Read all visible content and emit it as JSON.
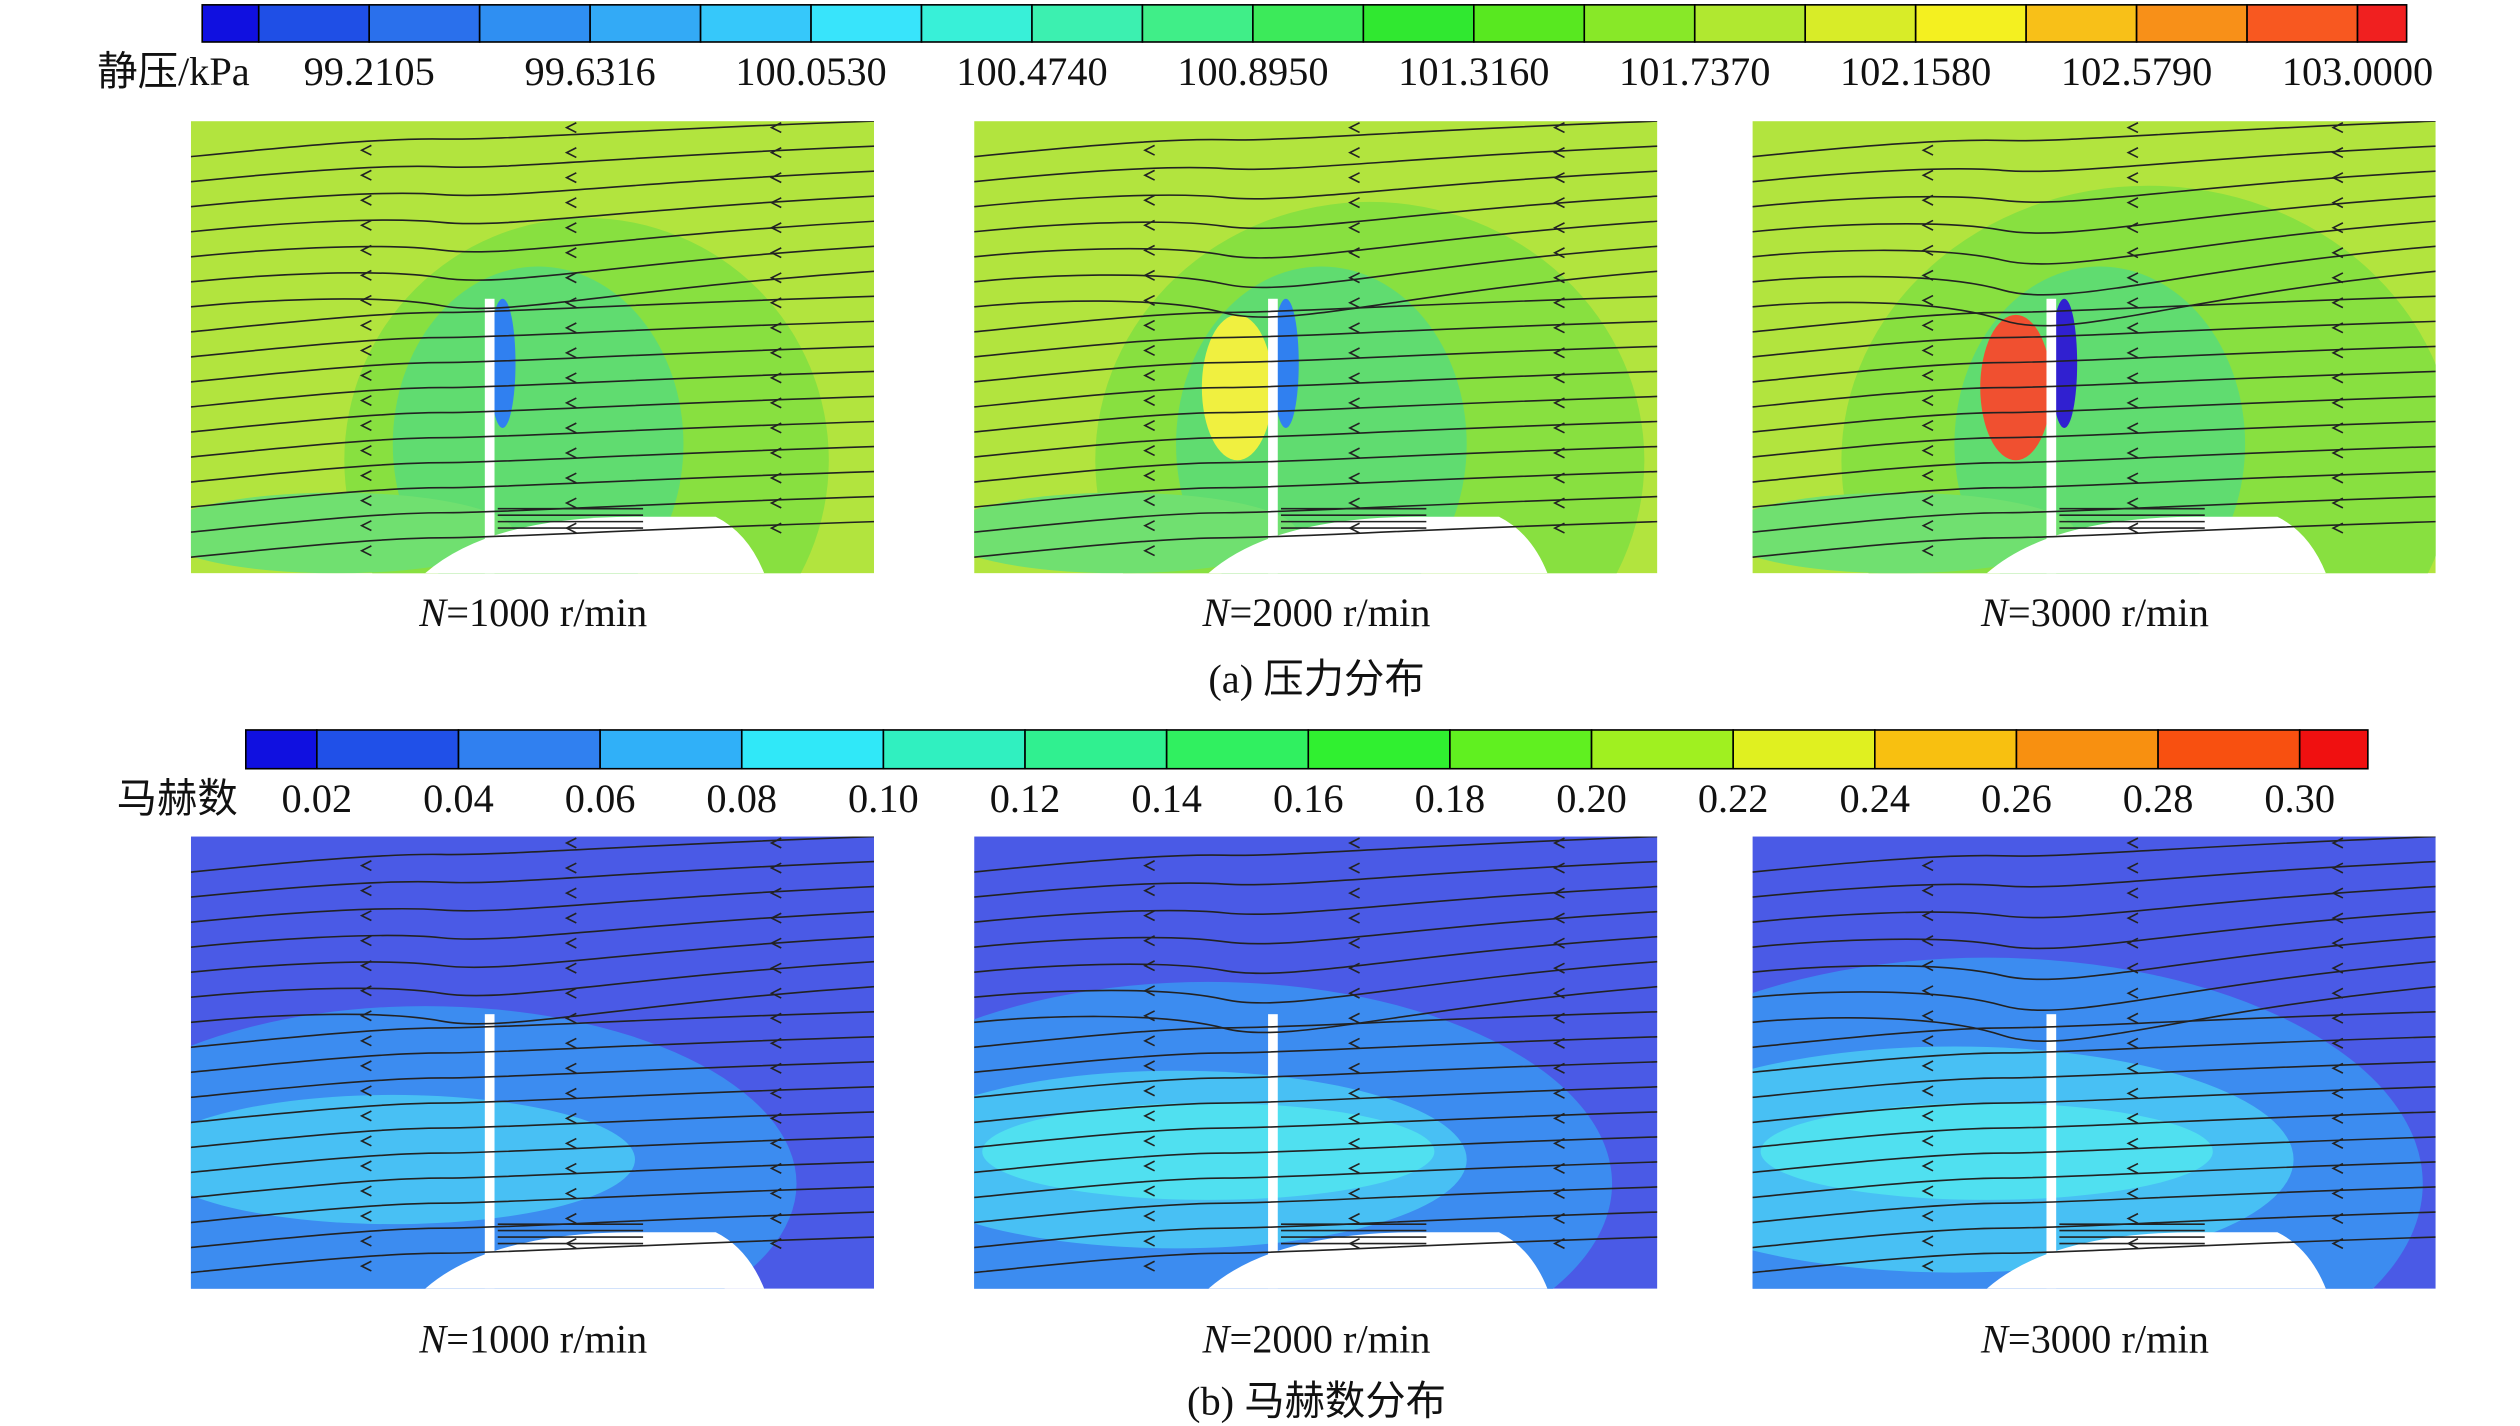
{
  "figure": {
    "pressure": {
      "label": "静压/kPa",
      "ticks": [
        "99.2105",
        "99.6316",
        "100.0530",
        "100.4740",
        "100.8950",
        "101.3160",
        "101.7370",
        "102.1580",
        "102.5790",
        "103.0000"
      ],
      "colors": [
        "#1010e0",
        "#1f4fe6",
        "#2a70ec",
        "#2f8ff2",
        "#33aaf6",
        "#36c8fa",
        "#38e4fb",
        "#38f0d8",
        "#3cf0b0",
        "#40ee88",
        "#3cea5a",
        "#30e830",
        "#58e820",
        "#88e828",
        "#b0e830",
        "#d8ec28",
        "#f4f020",
        "#f8c018",
        "#f89018",
        "#f85820",
        "#f02020"
      ]
    },
    "pressure_panels": [
      {
        "var": "N",
        "text": "=1000 r/min"
      },
      {
        "var": "N",
        "text": "=2000 r/min"
      },
      {
        "var": "N",
        "text": "=3000 r/min"
      }
    ],
    "pressure_caption": "(a) 压力分布",
    "mach": {
      "label": "马赫数",
      "ticks": [
        "0.02",
        "0.04",
        "0.06",
        "0.08",
        "0.10",
        "0.12",
        "0.14",
        "0.16",
        "0.18",
        "0.20",
        "0.22",
        "0.24",
        "0.26",
        "0.28",
        "0.30"
      ],
      "colors": [
        "#1010e0",
        "#2050e8",
        "#3080f0",
        "#30b0f8",
        "#30e8f8",
        "#30f0c0",
        "#30f090",
        "#30f060",
        "#30f030",
        "#60f020",
        "#a0f020",
        "#e0f020",
        "#f8c010",
        "#f89010",
        "#f85010",
        "#f01010"
      ]
    },
    "mach_panels": [
      {
        "var": "N",
        "text": "=1000 r/min"
      },
      {
        "var": "N",
        "text": "=2000 r/min"
      },
      {
        "var": "N",
        "text": "=3000 r/min"
      }
    ],
    "mach_caption": "(b) 马赫数分布"
  }
}
